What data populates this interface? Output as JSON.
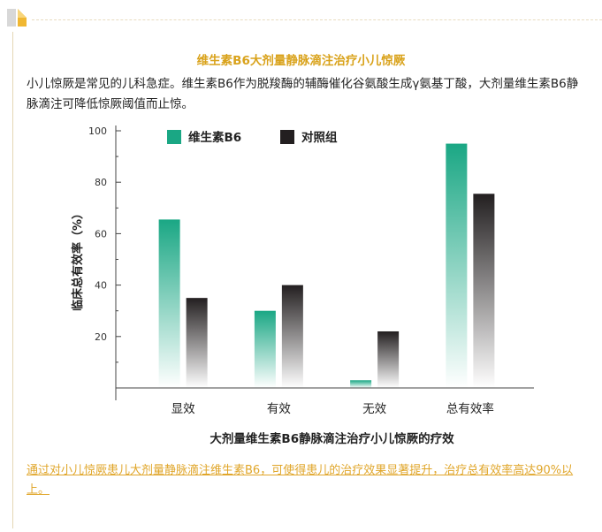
{
  "article": {
    "title": "维生素B6大剂量静脉滴注治疗小儿惊厥",
    "intro": "小儿惊厥是常见的儿科急症。维生素B6作为脱羧酶的辅酶催化谷氨酸生成γ氨基丁酸，大剂量维生素B6静脉滴注可降低惊厥阈值而止惊。",
    "conclusion": "通过对小儿惊厥患儿大剂量静脉滴注维生素B6，可使得患儿的治疗效果显著提升，治疗总有效率高达90%以上。"
  },
  "colors": {
    "accent": "#d9a21a",
    "series_b6": "#1aa784",
    "series_control": "#231f20"
  },
  "icons": {
    "corner": "folded-page-icon"
  },
  "chart_data": {
    "type": "bar",
    "title": "",
    "xlabel": "大剂量维生素B6静脉滴注治疗小儿惊厥的疗效",
    "ylabel": "临床总有效率（%）",
    "ylim": [
      0,
      100
    ],
    "yticks": [
      20,
      40,
      60,
      80,
      100
    ],
    "grid": false,
    "legend_position": "top-left",
    "categories": [
      "显效",
      "有效",
      "无效",
      "总有效率"
    ],
    "series": [
      {
        "name": "维生素B6",
        "values": [
          65.5,
          30,
          3,
          95
        ]
      },
      {
        "name": "对照组",
        "values": [
          35,
          40,
          22,
          75.5
        ]
      }
    ]
  }
}
